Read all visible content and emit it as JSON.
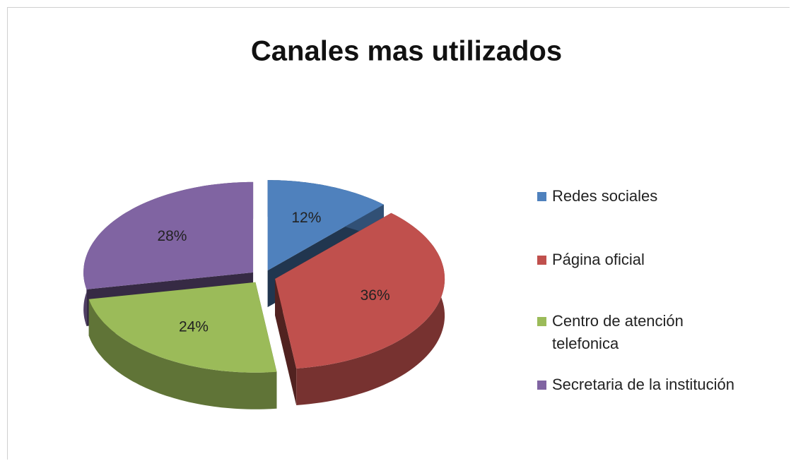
{
  "chart_data": {
    "type": "pie",
    "title": "Canales mas utilizados",
    "categories": [
      "Redes sociales",
      "Página oficial",
      "Centro de atención telefonica",
      "Secretaria de la institución"
    ],
    "values": [
      12,
      36,
      24,
      28
    ],
    "value_labels": [
      "12%",
      "36%",
      "24%",
      "28%"
    ],
    "colors": [
      "#4f81bd",
      "#c0504d",
      "#9bbb59",
      "#8064a2"
    ],
    "legend": "right"
  }
}
